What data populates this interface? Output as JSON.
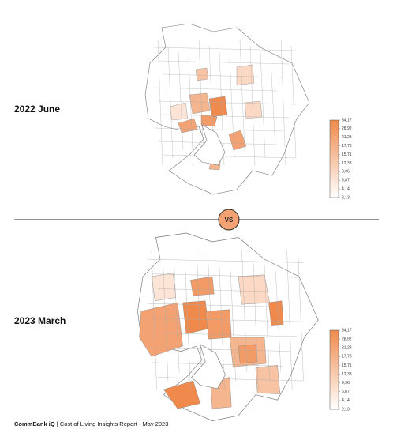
{
  "panels": [
    {
      "title": "2022 June"
    },
    {
      "title": "2023 March"
    }
  ],
  "divider": {
    "label": "VS"
  },
  "legend": {
    "labels": [
      "84,17",
      "28,92",
      "21,23",
      "17,73",
      "15,71",
      "12,38",
      "9,96",
      "6,87",
      "4,14",
      "2,13"
    ]
  },
  "footer": {
    "brand": "CommBank iQ",
    "separator": "|",
    "text": "Cost of Living Insights Report - May 2023"
  }
}
